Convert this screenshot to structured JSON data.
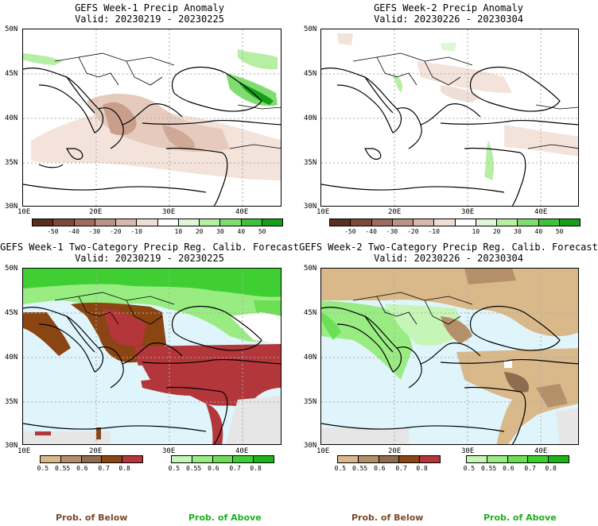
{
  "panels": [
    {
      "title": "GEFS Week-1 Precip Anomaly",
      "valid": "Valid: 20230219 - 20230225"
    },
    {
      "title": "GEFS Week-2 Precip Anomaly",
      "valid": "Valid: 20230226 - 20230304"
    },
    {
      "title": "GEFS Week-1 Two-Category Precip Reg. Calib. Forecast",
      "valid": "Valid: 20230219 - 20230225"
    },
    {
      "title": "GEFS Week-2 Two-Category Precip Reg. Calib. Forecast",
      "valid": "Valid: 20230226 - 20230304"
    }
  ],
  "lat_ticks": [
    "50N",
    "45N",
    "40N",
    "35N",
    "30N"
  ],
  "lon_ticks": [
    "10E",
    "20E",
    "30E",
    "40E"
  ],
  "anomaly_scale": {
    "labels": [
      "-50",
      "-40",
      "-30",
      "-20",
      "-10",
      "10",
      "20",
      "30",
      "40",
      "50"
    ],
    "colors": [
      "#5a2d1c",
      "#7d4a39",
      "#9e6b5c",
      "#bb9384",
      "#d7b8ab",
      "#eedfd6",
      "#ffffff",
      "#dff7d6",
      "#b6eea4",
      "#7fdd70",
      "#3fc23a",
      "#159f18"
    ]
  },
  "prob_scale": {
    "labels": [
      "0.5",
      "0.55",
      "0.6",
      "0.7",
      "0.8"
    ],
    "below_colors": [
      "#d9b98a",
      "#b58e6a",
      "#8f6b4f",
      "#8b4513",
      "#b3363a"
    ],
    "above_colors": [
      "#c6f5b8",
      "#98ec82",
      "#6ddf56",
      "#3fcf33",
      "#1fb41a"
    ]
  },
  "labels": {
    "prob_below": "Prob. of Below",
    "prob_above": "Prob. of Above"
  },
  "colors": {
    "sea": "#dff5fb",
    "land_neutral": "#ffffff",
    "no_data": "#e6e6e6",
    "below_text": "#7a4a2a",
    "above_text": "#1fae1f"
  }
}
